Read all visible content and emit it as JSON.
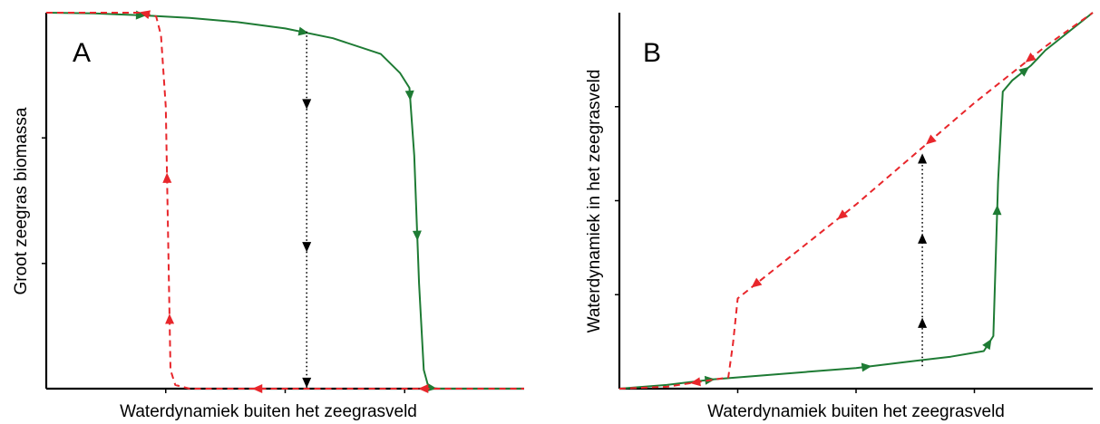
{
  "chart_data": [
    {
      "type": "line",
      "panel_label": "A",
      "xlabel": "Waterdynamiek buiten het zeegrasveld",
      "ylabel": "Groot zeegras biomassa",
      "xlim": [
        0,
        1
      ],
      "ylim": [
        0,
        1
      ],
      "x_ticks": [
        0.25,
        0.5,
        0.75
      ],
      "y_ticks": [
        0.333,
        0.667
      ],
      "series": [
        {
          "color": "#1e7b34",
          "style": "solid",
          "direction": "increasing-x",
          "x": [
            0.0,
            0.1,
            0.2,
            0.3,
            0.4,
            0.5,
            0.6,
            0.7,
            0.74,
            0.76,
            0.77,
            0.78,
            0.79,
            0.8,
            0.82,
            0.9,
            1.0
          ],
          "y": [
            1.0,
            0.998,
            0.993,
            0.986,
            0.975,
            0.958,
            0.932,
            0.89,
            0.84,
            0.8,
            0.62,
            0.28,
            0.05,
            0.003,
            0.0,
            0.0,
            0.0
          ]
        },
        {
          "color": "#e8262b",
          "style": "dashed",
          "direction": "decreasing-x",
          "x": [
            0.0,
            0.2,
            0.23,
            0.24,
            0.25,
            0.255,
            0.26,
            0.27,
            0.3,
            0.5,
            0.8,
            1.0
          ],
          "y": [
            1.0,
            1.0,
            0.99,
            0.94,
            0.75,
            0.4,
            0.05,
            0.01,
            0.0,
            0.0,
            0.0,
            0.0
          ]
        }
      ],
      "annotation": {
        "type": "dotted-transition",
        "x": 0.545,
        "y_from": 0.95,
        "y_to": 0.0,
        "direction": "down"
      }
    },
    {
      "type": "line",
      "panel_label": "B",
      "xlabel": "Waterdynamiek buiten het zeegrasveld",
      "ylabel": "Waterdynamiek in het zeegrasveld",
      "xlim": [
        0,
        1
      ],
      "ylim": [
        0,
        1
      ],
      "x_ticks": [
        0.25,
        0.5,
        0.75
      ],
      "y_ticks": [
        0.25,
        0.5,
        0.75
      ],
      "series": [
        {
          "color": "#1e7b34",
          "style": "solid",
          "direction": "increasing-x",
          "x": [
            0.0,
            0.1,
            0.2,
            0.3,
            0.4,
            0.5,
            0.6,
            0.7,
            0.77,
            0.79,
            0.8,
            0.81,
            0.83,
            0.87,
            0.9,
            1.0
          ],
          "y": [
            0.0,
            0.01,
            0.025,
            0.035,
            0.045,
            0.055,
            0.07,
            0.085,
            0.1,
            0.14,
            0.55,
            0.79,
            0.82,
            0.86,
            0.9,
            1.0
          ]
        },
        {
          "color": "#e8262b",
          "style": "dashed",
          "direction": "decreasing-x",
          "x": [
            0.0,
            0.1,
            0.23,
            0.24,
            0.25,
            0.27,
            0.35,
            0.5,
            0.75,
            0.9,
            1.0
          ],
          "y": [
            0.0,
            0.005,
            0.03,
            0.12,
            0.24,
            0.26,
            0.34,
            0.49,
            0.76,
            0.91,
            1.0
          ]
        }
      ],
      "annotation": {
        "type": "dotted-transition",
        "x": 0.64,
        "y_from": 0.06,
        "y_to": 0.62,
        "direction": "up"
      }
    }
  ]
}
